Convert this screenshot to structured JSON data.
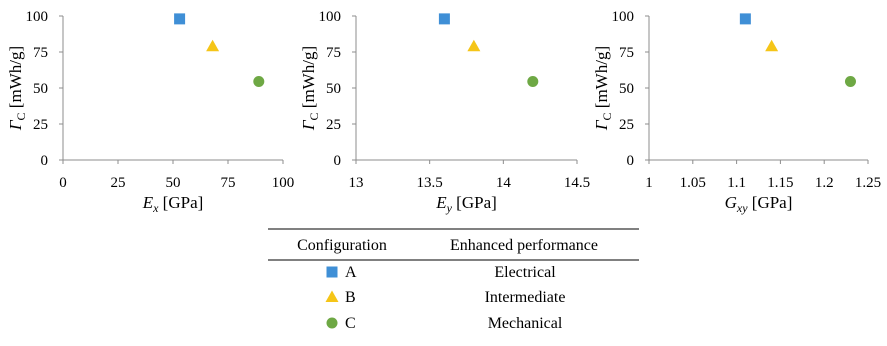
{
  "chart_data": [
    {
      "type": "scatter",
      "xlabel": {
        "main": "E",
        "sub": "x",
        "unit": "[GPa]"
      },
      "ylabel": {
        "main": "Γ",
        "sub": "C",
        "unit": "[mWh/g]"
      },
      "xlim": [
        0,
        100
      ],
      "ylim": [
        0,
        100
      ],
      "xticks": [
        "0",
        "25",
        "50",
        "75",
        "100"
      ],
      "yticks": [
        "0",
        "25",
        "50",
        "75",
        "100"
      ],
      "grid": false,
      "points": [
        {
          "series": "A",
          "x": 53,
          "y": 98
        },
        {
          "series": "B",
          "x": 68,
          "y": 79
        },
        {
          "series": "C",
          "x": 89,
          "y": 54.5
        }
      ]
    },
    {
      "type": "scatter",
      "xlabel": {
        "main": "E",
        "sub": "y",
        "unit": "[GPa]"
      },
      "ylabel": {
        "main": "Γ",
        "sub": "C",
        "unit": "[mWh/g]"
      },
      "xlim": [
        13,
        14.5
      ],
      "ylim": [
        0,
        100
      ],
      "xticks": [
        "13",
        "13.5",
        "14",
        "14.5"
      ],
      "yticks": [
        "0",
        "25",
        "50",
        "75",
        "100"
      ],
      "grid": false,
      "points": [
        {
          "series": "A",
          "x": 13.6,
          "y": 98
        },
        {
          "series": "B",
          "x": 13.8,
          "y": 79
        },
        {
          "series": "C",
          "x": 14.2,
          "y": 54.5
        }
      ]
    },
    {
      "type": "scatter",
      "xlabel": {
        "main": "G",
        "sub": "xy",
        "unit": "[GPa]"
      },
      "ylabel": {
        "main": "Γ",
        "sub": "C",
        "unit": "[mWh/g]"
      },
      "xlim": [
        1,
        1.25
      ],
      "ylim": [
        0,
        100
      ],
      "xticks": [
        "1",
        "1.05",
        "1.1",
        "1.15",
        "1.2",
        "1.25"
      ],
      "yticks": [
        "0",
        "25",
        "50",
        "75",
        "100"
      ],
      "grid": false,
      "points": [
        {
          "series": "A",
          "x": 1.11,
          "y": 98
        },
        {
          "series": "B",
          "x": 1.14,
          "y": 79
        },
        {
          "series": "C",
          "x": 1.23,
          "y": 54.5
        }
      ]
    }
  ],
  "series_styles": {
    "A": {
      "shape": "square",
      "color": "#3f8fd6"
    },
    "B": {
      "shape": "triangle",
      "color": "#f5c518"
    },
    "C": {
      "shape": "circle",
      "color": "#6ea844"
    }
  },
  "legend_table": {
    "headers": [
      "Configuration",
      "Enhanced performance"
    ],
    "rows": [
      {
        "series": "A",
        "label": "A",
        "performance": "Electrical"
      },
      {
        "series": "B",
        "label": "B",
        "performance": "Intermediate"
      },
      {
        "series": "C",
        "label": "C",
        "performance": "Mechanical"
      }
    ]
  }
}
